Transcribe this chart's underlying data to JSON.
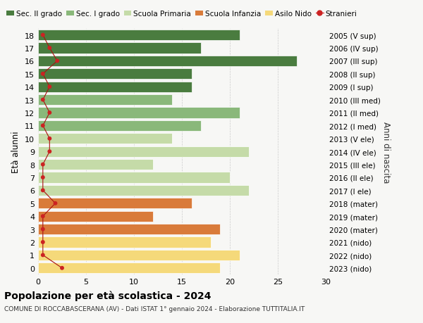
{
  "ages": [
    18,
    17,
    16,
    15,
    14,
    13,
    12,
    11,
    10,
    9,
    8,
    7,
    6,
    5,
    4,
    3,
    2,
    1,
    0
  ],
  "right_labels": [
    "2005 (V sup)",
    "2006 (IV sup)",
    "2007 (III sup)",
    "2008 (II sup)",
    "2009 (I sup)",
    "2010 (III med)",
    "2011 (II med)",
    "2012 (I med)",
    "2013 (V ele)",
    "2014 (IV ele)",
    "2015 (III ele)",
    "2016 (II ele)",
    "2017 (I ele)",
    "2018 (mater)",
    "2019 (mater)",
    "2020 (mater)",
    "2021 (nido)",
    "2022 (nido)",
    "2023 (nido)"
  ],
  "bar_values": [
    21,
    17,
    27,
    16,
    16,
    14,
    21,
    17,
    14,
    22,
    12,
    20,
    22,
    16,
    12,
    19,
    18,
    21,
    19
  ],
  "bar_colors": [
    "#4a7c3f",
    "#4a7c3f",
    "#4a7c3f",
    "#4a7c3f",
    "#4a7c3f",
    "#8ab87a",
    "#8ab87a",
    "#8ab87a",
    "#c5dba8",
    "#c5dba8",
    "#c5dba8",
    "#c5dba8",
    "#c5dba8",
    "#d97b3a",
    "#d97b3a",
    "#d97b3a",
    "#f5d97a",
    "#f5d97a",
    "#f5d97a"
  ],
  "stranieri_x": [
    0.5,
    1.2,
    2.0,
    0.5,
    1.2,
    0.5,
    1.2,
    0.5,
    1.2,
    1.2,
    0.5,
    0.5,
    0.5,
    1.8,
    0.5,
    0.5,
    0.5,
    0.5,
    2.5
  ],
  "legend_labels": [
    "Sec. II grado",
    "Sec. I grado",
    "Scuola Primaria",
    "Scuola Infanzia",
    "Asilo Nido",
    "Stranieri"
  ],
  "legend_colors": [
    "#4a7c3f",
    "#8ab87a",
    "#c5dba8",
    "#d97b3a",
    "#f5d97a",
    "#cc2222"
  ],
  "ylabel": "Età alunni",
  "right_ylabel": "Anni di nascita",
  "title": "Popolazione per età scolastica - 2024",
  "subtitle": "COMUNE DI ROCCABASCERANA (AV) - Dati ISTAT 1° gennaio 2024 - Elaborazione TUTTITALIA.IT",
  "xlim": [
    0,
    30
  ],
  "background_color": "#f7f7f5",
  "bar_height": 0.82
}
